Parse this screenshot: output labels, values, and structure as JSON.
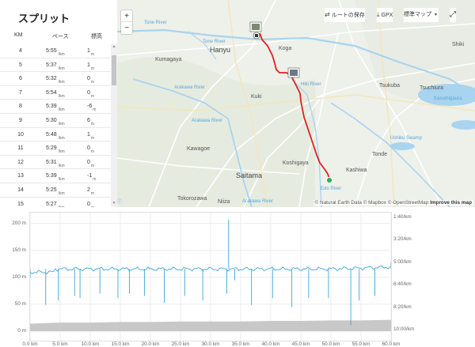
{
  "splits": {
    "title": "スプリット",
    "headers": {
      "km": "KM",
      "pace": "ペース",
      "elev": "標高"
    },
    "pace_unit": "/km",
    "elev_unit": "m",
    "rows": [
      {
        "km": "4",
        "pace": "5:55",
        "elev": "1"
      },
      {
        "km": "5",
        "pace": "5:37",
        "elev": "1"
      },
      {
        "km": "6",
        "pace": "5:32",
        "elev": "0"
      },
      {
        "km": "7",
        "pace": "5:54",
        "elev": "0"
      },
      {
        "km": "8",
        "pace": "5:39",
        "elev": "-6"
      },
      {
        "km": "9",
        "pace": "5:30",
        "elev": "6"
      },
      {
        "km": "10",
        "pace": "5:48",
        "elev": "1"
      },
      {
        "km": "11",
        "pace": "5:29",
        "elev": "0"
      },
      {
        "km": "12",
        "pace": "5:31",
        "elev": "0"
      },
      {
        "km": "13",
        "pace": "5:39",
        "elev": "-1"
      },
      {
        "km": "14",
        "pace": "5:25",
        "elev": "2"
      },
      {
        "km": "15",
        "pace": "5:27",
        "elev": "0"
      }
    ]
  },
  "map": {
    "controls": {
      "zoom_in": "+",
      "zoom_out": "−"
    },
    "toolbar": {
      "save_route": "ルートの保存",
      "gpx": "GPX",
      "map_style": "標準マップ"
    },
    "labels": {
      "tone_river": "Tone River",
      "hanyu": "Hanyu",
      "koga": "Koga",
      "kumagaya": "Kumagaya",
      "kuki": "Kuki",
      "arakawa_river": "Arakawa River",
      "tsukuba": "Tsukuba",
      "tsuchiura": "Tsuchiura",
      "kasumigaura": "Kasumigaura",
      "ushiku_swamp": "Ushiku Swamp",
      "kawagoe": "Kawagoe",
      "koshigaya": "Koshigaya",
      "tonde": "Tonde",
      "kashiwa": "Kashiwa",
      "saitama": "Saitama",
      "edo_river": "Edo River",
      "tokorozawa": "Tokorozawa",
      "niiza": "Niiza",
      "arakawa_river2": "Arakawa River",
      "tone_river2": "Tone River",
      "hiki_river": "Hiki River",
      "shiki": "Shiki"
    },
    "attribution": {
      "prefix": "© Natural Earth Data © Mapbox © OpenStreetMap",
      "improve": "Improve this map"
    },
    "colors": {
      "route": "#e02020",
      "start": "#2ab24a",
      "water": "#a8d4ef",
      "land": "#eef0ea"
    }
  },
  "chart_data": {
    "type": "line",
    "x_unit": "km",
    "x_ticks": [
      "0.0 km",
      "5.0 km",
      "10.0 km",
      "15.0 km",
      "20.0 km",
      "25.0 km",
      "30.0 km",
      "35.0 km",
      "40.0 km",
      "45.0 km",
      "50.0 km",
      "55.0 km",
      "60.0 km"
    ],
    "xlim": [
      0,
      60
    ],
    "y_left_ticks": [
      "0 m",
      "50 m",
      "100 m",
      "150 m",
      "200 m"
    ],
    "y_left_lim": [
      0,
      220
    ],
    "y_right_ticks": [
      "1:40/km",
      "3:20/km",
      "5:00/km",
      "6:40/km",
      "8:20/km",
      "10:00/km"
    ],
    "series": [
      {
        "kind": "elevation",
        "axis": "left",
        "color": "#c8c8c8",
        "x": [
          0,
          5,
          10,
          15,
          20,
          25,
          30,
          35,
          40,
          45,
          50,
          55,
          60
        ],
        "values": [
          14,
          16,
          16,
          17,
          17,
          18,
          18,
          18,
          19,
          19,
          20,
          20,
          21
        ]
      },
      {
        "kind": "pace",
        "axis": "right",
        "color": "#3fa4d8",
        "baseline": "5:30",
        "x": [
          0,
          2.6,
          4.7,
          7.4,
          8.3,
          11.6,
          14.6,
          16.5,
          19.0,
          22.3,
          25.7,
          28.7,
          32.7,
          33.0,
          34.0,
          36.8,
          40.3,
          43.5,
          46.3,
          49.6,
          53.3,
          54.7,
          57.3,
          60.0
        ],
        "values": [
          "6:10",
          "8:10",
          "7:50",
          "7:30",
          "7:40",
          "7:20",
          "7:40",
          "7:20",
          "7:30",
          "8:00",
          "7:30",
          "7:50",
          "7:20",
          "1:50",
          "6:20",
          "8:10",
          "7:40",
          "8:20",
          "7:40",
          "7:40",
          "9:40",
          "7:50",
          "7:30",
          "5:00"
        ]
      }
    ],
    "grid": true
  }
}
